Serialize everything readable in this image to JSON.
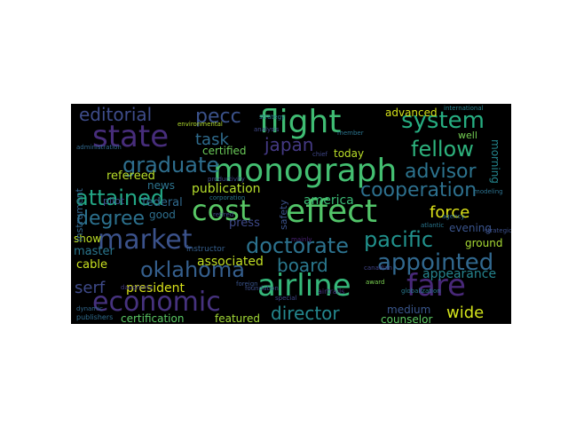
{
  "word_cloud": {
    "background": "#000000",
    "words": [
      {
        "text": "flight",
        "color": "#3fbc73"
      },
      {
        "text": "monograph",
        "color": "#43bf71"
      },
      {
        "text": "effect",
        "color": "#52c569"
      },
      {
        "text": "cost",
        "color": "#58c765"
      },
      {
        "text": "airline",
        "color": "#35b779"
      },
      {
        "text": "market",
        "color": "#3b528b"
      },
      {
        "text": "state",
        "color": "#472d7b"
      },
      {
        "text": "fare",
        "color": "#482878"
      },
      {
        "text": "economic",
        "color": "#46327e"
      },
      {
        "text": "system",
        "color": "#26ad81"
      },
      {
        "text": "appointed",
        "color": "#31688e"
      },
      {
        "text": "fellow",
        "color": "#2db27d"
      },
      {
        "text": "doctorate",
        "color": "#2c728e"
      },
      {
        "text": "graduate",
        "color": "#2e6e8e"
      },
      {
        "text": "cooperation",
        "color": "#2d708e"
      },
      {
        "text": "attained",
        "color": "#22a785"
      },
      {
        "text": "degree",
        "color": "#2c718e"
      },
      {
        "text": "pacific",
        "color": "#21918c"
      },
      {
        "text": "oklahoma",
        "color": "#355f8d"
      },
      {
        "text": "advisor",
        "color": "#2c738e"
      },
      {
        "text": "japan",
        "color": "#443983"
      },
      {
        "text": "editorial",
        "color": "#3e4c8a"
      },
      {
        "text": "pecc",
        "color": "#3b528b"
      },
      {
        "text": "director",
        "color": "#24878e"
      },
      {
        "text": "board",
        "color": "#2a788e"
      },
      {
        "text": "task",
        "color": "#2f6c8e"
      },
      {
        "text": "force",
        "color": "#dde318"
      },
      {
        "text": "wide",
        "color": "#d2e21b"
      },
      {
        "text": "serf",
        "color": "#3e4a89"
      },
      {
        "text": "president",
        "color": "#d8e219"
      },
      {
        "text": "publication",
        "color": "#b5de2b"
      },
      {
        "text": "associated",
        "color": "#c2df23"
      },
      {
        "text": "appearance",
        "color": "#25848e"
      },
      {
        "text": "america",
        "color": "#3bbb75"
      },
      {
        "text": "federal",
        "color": "#306a8e"
      },
      {
        "text": "refereed",
        "color": "#b8de29"
      },
      {
        "text": "press",
        "color": "#3e4989"
      },
      {
        "text": "certified",
        "color": "#6ccd5a"
      },
      {
        "text": "evening",
        "color": "#3a548c"
      },
      {
        "text": "cable",
        "color": "#c8e020"
      },
      {
        "text": "master",
        "color": "#2a768e"
      },
      {
        "text": "show",
        "color": "#bddf26"
      },
      {
        "text": "news",
        "color": "#2c738e"
      },
      {
        "text": "good",
        "color": "#2e6f8e"
      },
      {
        "text": "certification",
        "color": "#5ac864"
      },
      {
        "text": "featured",
        "color": "#a2da37"
      },
      {
        "text": "medium",
        "color": "#39568c"
      },
      {
        "text": "counselor",
        "color": "#5cc863"
      },
      {
        "text": "ground",
        "color": "#a8db34"
      },
      {
        "text": "morning",
        "color": "#24868e"
      },
      {
        "text": "advanced",
        "color": "#d5e21a"
      },
      {
        "text": "today",
        "color": "#bade28"
      },
      {
        "text": "well",
        "color": "#75d054"
      },
      {
        "text": "pilot",
        "color": "#3e4c8a"
      },
      {
        "text": "instrument",
        "color": "#31678e"
      },
      {
        "text": "safety",
        "color": "#3b528b"
      },
      {
        "text": "instructor",
        "color": "#355f8d"
      },
      {
        "text": "productivity",
        "color": "#3e4a89"
      },
      {
        "text": "analysis",
        "color": "#3f4788"
      },
      {
        "text": "strategy",
        "color": "#2a768e"
      },
      {
        "text": "publishers",
        "color": "#2f6c8e"
      },
      {
        "text": "globalization",
        "color": "#29798e"
      },
      {
        "text": "international",
        "color": "#26818e"
      },
      {
        "text": "environmental",
        "color": "#b2dd2d"
      },
      {
        "text": "administration",
        "color": "#31688e"
      },
      {
        "text": "corporation",
        "color": "#2a788e"
      },
      {
        "text": "foundation",
        "color": "#3d4e8a"
      },
      {
        "text": "dynamic",
        "color": "#31688e"
      },
      {
        "text": "modeling",
        "color": "#2c718e"
      },
      {
        "text": "canadian",
        "color": "#414487"
      },
      {
        "text": "atlantic",
        "color": "#2a768e"
      },
      {
        "text": "special",
        "color": "#3f4889"
      },
      {
        "text": "agency",
        "color": "#2e6d8e"
      },
      {
        "text": "airtrails",
        "color": "#46327e"
      },
      {
        "text": "daugherty",
        "color": "#443a83"
      },
      {
        "text": "strategic",
        "color": "#3c4f8a"
      },
      {
        "text": "retired",
        "color": "#3e4a89"
      },
      {
        "text": "member",
        "color": "#2b748e"
      },
      {
        "text": "award",
        "color": "#7ad151"
      },
      {
        "text": "foreign",
        "color": "#3a548c"
      },
      {
        "text": "mainly",
        "color": "#482173"
      },
      {
        "text": "chief",
        "color": "#3f4788"
      }
    ]
  }
}
